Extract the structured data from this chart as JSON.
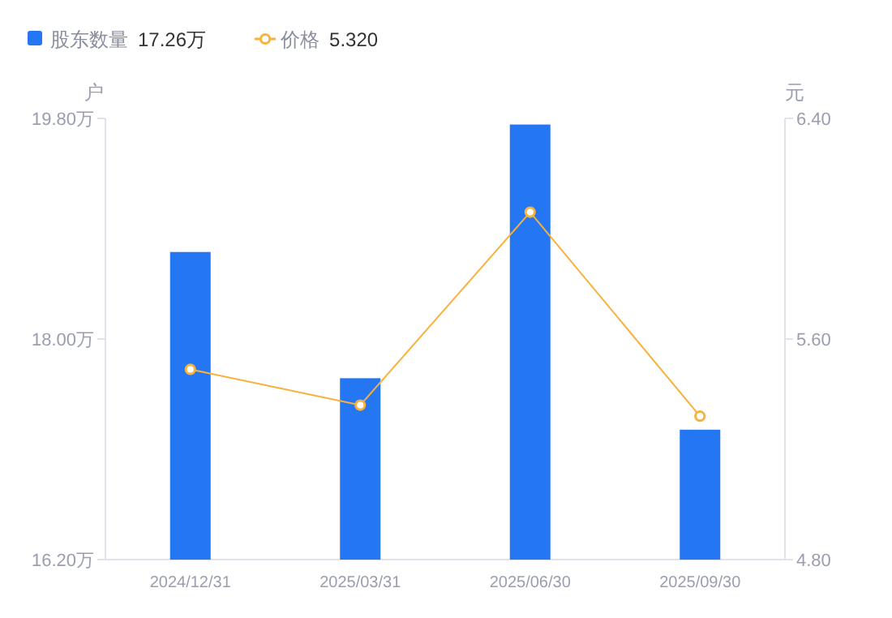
{
  "chart_data": {
    "type": "bar",
    "categories": [
      "2024/12/31",
      "2025/03/31",
      "2025/06/30",
      "2025/09/30"
    ],
    "series": [
      {
        "name": "股东数量",
        "color": "#2476f3",
        "values": [
          18.71,
          17.68,
          19.75,
          17.26
        ]
      },
      {
        "name": "价格",
        "type": "line",
        "axis": "y2",
        "color": "#f8b13a",
        "marker": "circle",
        "values": [
          5.49,
          5.36,
          6.06,
          5.32
        ]
      }
    ],
    "ylabel": "户",
    "y2label": "元",
    "ylim": [
      16.2,
      19.8
    ],
    "yticks": [
      {
        "value": 16.2,
        "label": "16.20万"
      },
      {
        "value": 18.0,
        "label": "18.00万"
      },
      {
        "value": 19.8,
        "label": "19.80万"
      }
    ],
    "y2lim": [
      4.8,
      6.4
    ],
    "y2ticks": [
      {
        "value": 4.8,
        "label": "4.80"
      },
      {
        "value": 5.6,
        "label": "5.60"
      },
      {
        "value": 6.4,
        "label": "6.40"
      }
    ],
    "legend": "top left",
    "annotations": [
      "17.26万",
      "5.320"
    ]
  }
}
